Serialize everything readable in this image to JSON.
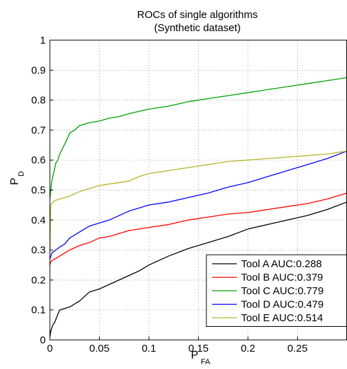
{
  "chart_data": {
    "type": "line",
    "title": "ROCs of single algorithms",
    "subtitle": "(Synthetic dataset)",
    "xlabel": "P",
    "xlabel_sub": "FA",
    "ylabel": "P",
    "ylabel_sub": "D",
    "xlim": [
      0,
      0.3
    ],
    "ylim": [
      0,
      1
    ],
    "xticks": [
      0,
      0.05,
      0.1,
      0.15,
      0.2,
      0.25
    ],
    "xtick_labels": [
      "0",
      "0.05",
      "0.1",
      "0.15",
      "0.2",
      "0.25"
    ],
    "yticks": [
      0,
      0.1,
      0.2,
      0.3,
      0.4,
      0.5,
      0.6,
      0.7,
      0.8,
      0.9,
      1
    ],
    "ytick_labels": [
      "0",
      "0.1",
      "0.2",
      "0.3",
      "0.4",
      "0.5",
      "0.6",
      "0.7",
      "0.8",
      "0.9",
      "1"
    ],
    "grid": true,
    "grid_style": "dotted",
    "legend_position": "bottom-right",
    "series": [
      {
        "name": "Tool A AUC:0.288",
        "color": "#000000",
        "x": [
          0,
          0.001,
          0.003,
          0.005,
          0.008,
          0.01,
          0.015,
          0.02,
          0.03,
          0.04,
          0.05,
          0.06,
          0.07,
          0.08,
          0.09,
          0.1,
          0.12,
          0.14,
          0.16,
          0.18,
          0.2,
          0.22,
          0.24,
          0.26,
          0.28,
          0.3
        ],
        "y": [
          0.01,
          0.03,
          0.05,
          0.06,
          0.085,
          0.1,
          0.105,
          0.11,
          0.13,
          0.16,
          0.17,
          0.185,
          0.2,
          0.215,
          0.23,
          0.25,
          0.28,
          0.305,
          0.325,
          0.345,
          0.37,
          0.385,
          0.4,
          0.415,
          0.435,
          0.46
        ]
      },
      {
        "name": "Tool B AUC:0.379",
        "color": "#ff0000",
        "x": [
          0,
          0.001,
          0.002,
          0.005,
          0.01,
          0.015,
          0.02,
          0.03,
          0.04,
          0.05,
          0.06,
          0.07,
          0.08,
          0.1,
          0.12,
          0.14,
          0.16,
          0.18,
          0.2,
          0.22,
          0.24,
          0.26,
          0.28,
          0.3
        ],
        "y": [
          0.25,
          0.26,
          0.265,
          0.27,
          0.28,
          0.29,
          0.3,
          0.315,
          0.325,
          0.34,
          0.345,
          0.355,
          0.365,
          0.375,
          0.385,
          0.4,
          0.41,
          0.42,
          0.425,
          0.435,
          0.445,
          0.455,
          0.47,
          0.49
        ]
      },
      {
        "name": "Tool C AUC:0.779",
        "color": "#00a000",
        "x": [
          0,
          0.001,
          0.002,
          0.004,
          0.006,
          0.008,
          0.01,
          0.013,
          0.016,
          0.02,
          0.025,
          0.03,
          0.035,
          0.04,
          0.05,
          0.06,
          0.07,
          0.08,
          0.1,
          0.12,
          0.14,
          0.16,
          0.18,
          0.2,
          0.22,
          0.24,
          0.26,
          0.28,
          0.3
        ],
        "y": [
          0.47,
          0.5,
          0.53,
          0.56,
          0.59,
          0.6,
          0.62,
          0.64,
          0.66,
          0.69,
          0.7,
          0.715,
          0.72,
          0.725,
          0.73,
          0.74,
          0.745,
          0.755,
          0.77,
          0.78,
          0.795,
          0.805,
          0.815,
          0.825,
          0.835,
          0.845,
          0.855,
          0.865,
          0.875
        ]
      },
      {
        "name": "Tool D AUC:0.479",
        "color": "#0000ff",
        "x": [
          0,
          0.001,
          0.002,
          0.004,
          0.006,
          0.01,
          0.015,
          0.02,
          0.03,
          0.04,
          0.05,
          0.06,
          0.08,
          0.1,
          0.12,
          0.14,
          0.16,
          0.18,
          0.2,
          0.22,
          0.24,
          0.26,
          0.28,
          0.3
        ],
        "y": [
          0.27,
          0.28,
          0.29,
          0.295,
          0.3,
          0.31,
          0.32,
          0.34,
          0.36,
          0.38,
          0.39,
          0.4,
          0.43,
          0.45,
          0.46,
          0.475,
          0.49,
          0.51,
          0.525,
          0.545,
          0.565,
          0.585,
          0.605,
          0.63
        ]
      },
      {
        "name": "Tool E AUC:0.514",
        "color": "#b5b52a",
        "x": [
          0,
          0.001,
          0.003,
          0.005,
          0.01,
          0.02,
          0.03,
          0.04,
          0.05,
          0.06,
          0.07,
          0.08,
          0.09,
          0.1,
          0.12,
          0.14,
          0.16,
          0.18,
          0.2,
          0.22,
          0.24,
          0.26,
          0.28,
          0.3
        ],
        "y": [
          0.29,
          0.45,
          0.46,
          0.465,
          0.47,
          0.48,
          0.495,
          0.505,
          0.515,
          0.52,
          0.525,
          0.53,
          0.545,
          0.555,
          0.565,
          0.575,
          0.585,
          0.595,
          0.6,
          0.605,
          0.61,
          0.615,
          0.62,
          0.63
        ]
      }
    ]
  }
}
